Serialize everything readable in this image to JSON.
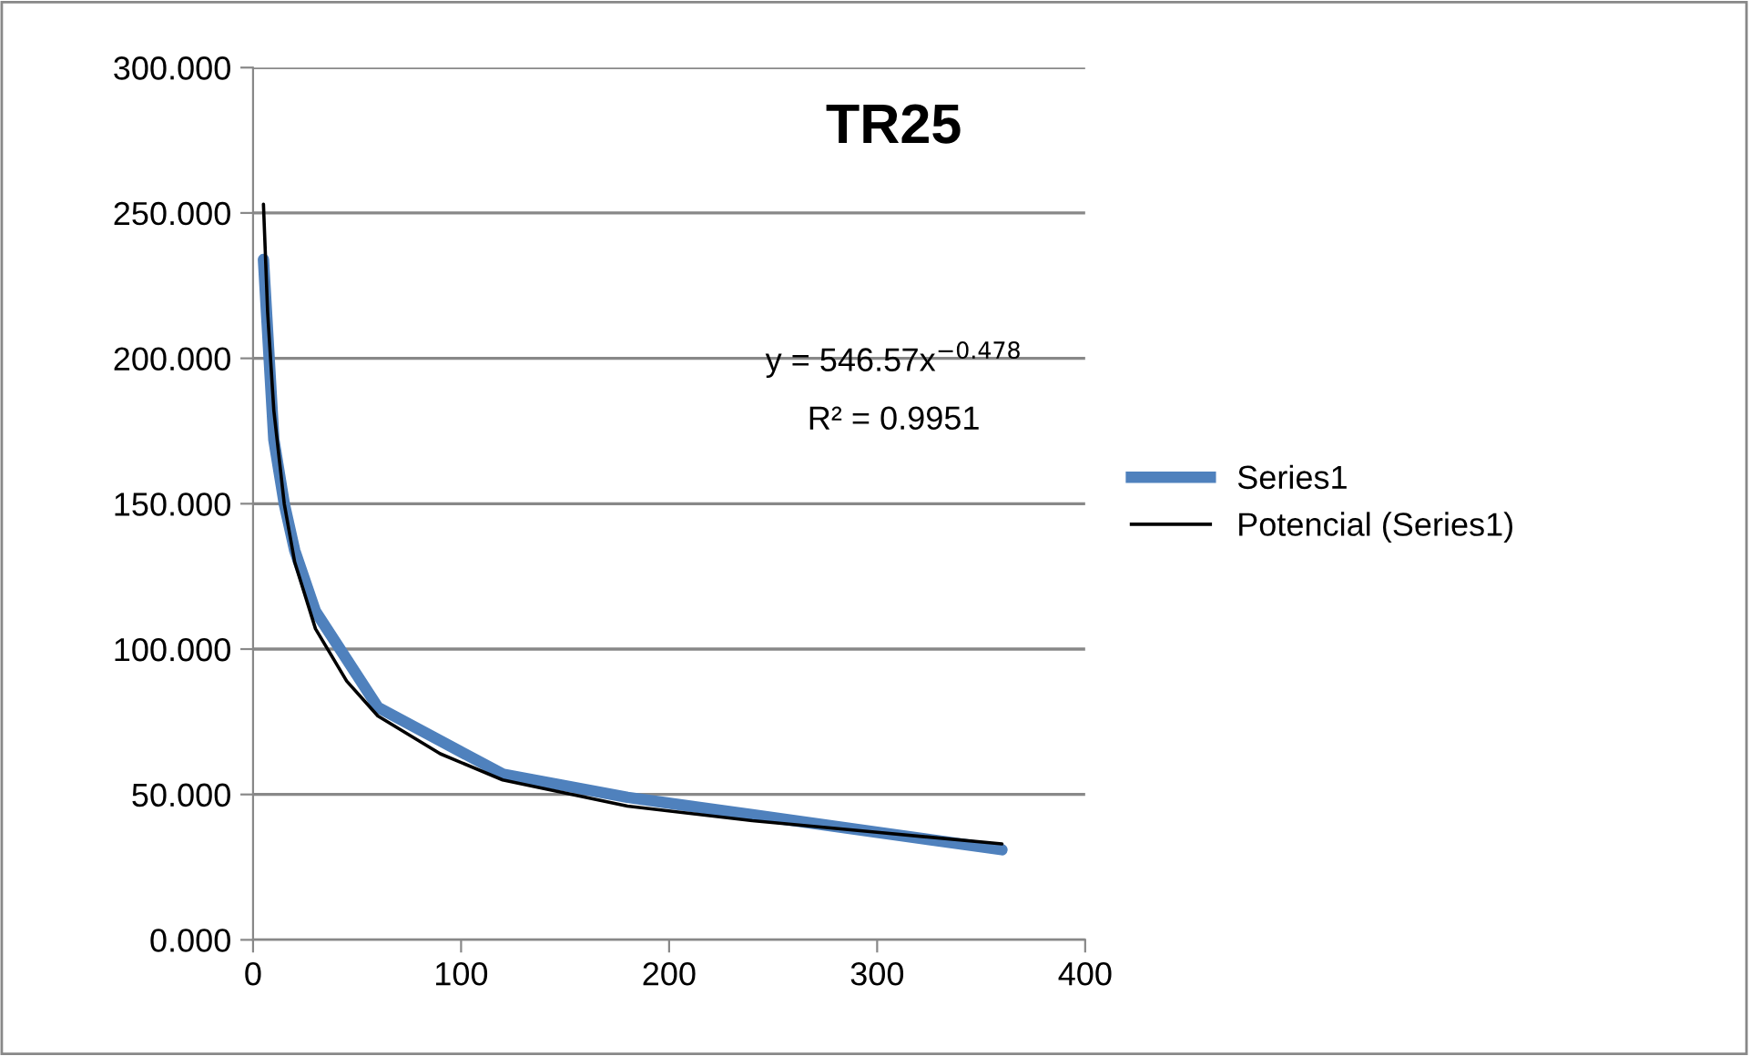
{
  "chart_data": {
    "type": "line",
    "title": "TR25",
    "annotations": [
      "y = 546.57x$^{−0.478}$",
      "R² = 0.9951"
    ],
    "series": [
      {
        "name": "Series1",
        "color": "#4f81bd",
        "x": [
          5,
          10,
          15,
          20,
          30,
          60,
          120,
          180,
          240,
          300,
          360
        ],
        "values": [
          234,
          172,
          150,
          134,
          113,
          80,
          57,
          49,
          43,
          37,
          31
        ]
      },
      {
        "name": "Potencial (Series1)",
        "color": "#000000",
        "type": "line",
        "x": [
          5,
          7,
          10,
          15,
          20,
          30,
          45,
          60,
          90,
          120,
          180,
          240,
          300,
          360
        ],
        "values": [
          253,
          216,
          182,
          150,
          130,
          107,
          89,
          77,
          64,
          55,
          46,
          41,
          37,
          33
        ]
      }
    ],
    "xlim": [
      0,
      400
    ],
    "xticks": [
      0,
      100,
      200,
      300,
      400
    ],
    "ylim": [
      0,
      300
    ],
    "yticks": [
      {
        "value": 0,
        "label": "0.000"
      },
      {
        "value": 50,
        "label": "50.000"
      },
      {
        "value": 100,
        "label": "100.000"
      },
      {
        "value": 150,
        "label": "150.000"
      },
      {
        "value": 200,
        "label": "200.000"
      },
      {
        "value": 250,
        "label": "250.000"
      },
      {
        "value": 300,
        "label": "300.000"
      }
    ],
    "grid": "y",
    "legend": "right",
    "marker": "none"
  }
}
